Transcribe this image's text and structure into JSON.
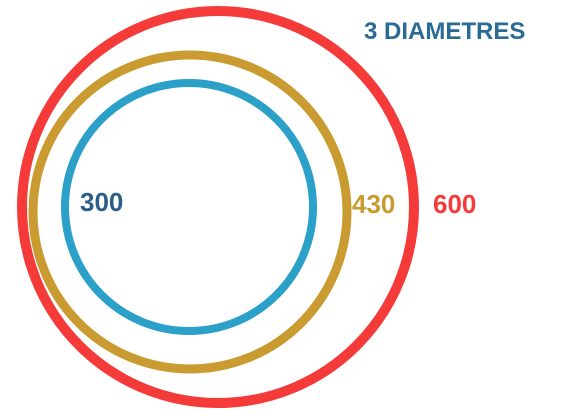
{
  "title": {
    "text": "3 DIAMETRES",
    "color": "#2a6b96"
  },
  "circles": [
    {
      "id": "small",
      "label": "300",
      "value": 300,
      "stroke_color": "#2ba0c8",
      "label_color": "#2a5d87"
    },
    {
      "id": "medium",
      "label": "430",
      "value": 430,
      "stroke_color": "#c99b30",
      "label_color": "#c99b30"
    },
    {
      "id": "large",
      "label": "600",
      "value": 600,
      "stroke_color": "#f53a3a",
      "label_color": "#f53a3a"
    }
  ]
}
